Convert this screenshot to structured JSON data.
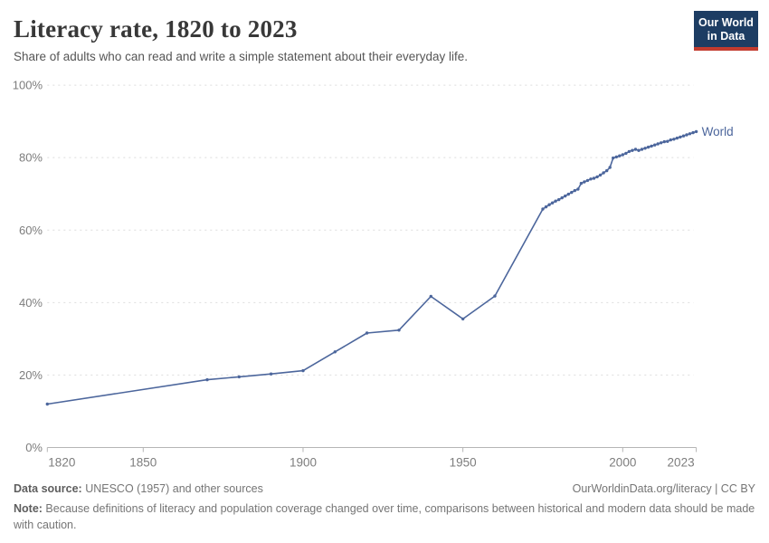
{
  "header": {
    "title": "Literacy rate, 1820 to 2023",
    "subtitle": "Share of adults who can read and write a simple statement about their everyday life.",
    "logo": {
      "line1": "Our World",
      "line2": "in Data"
    }
  },
  "chart_data": {
    "type": "line",
    "title": "Literacy rate, 1820 to 2023",
    "xlabel": "",
    "ylabel": "",
    "x_range": [
      1820,
      2023
    ],
    "y_range": [
      0,
      100
    ],
    "x_ticks": [
      1820,
      1850,
      1900,
      1950,
      2000,
      2023
    ],
    "y_ticks": [
      0,
      20,
      40,
      60,
      80,
      100
    ],
    "y_tick_suffix": "%",
    "grid": "horizontal-dashed",
    "legend": "end-of-line-label",
    "series": [
      {
        "name": "World",
        "color": "#4c669c",
        "points": [
          [
            1820,
            12.0
          ],
          [
            1870,
            18.7
          ],
          [
            1880,
            19.5
          ],
          [
            1890,
            20.3
          ],
          [
            1900,
            21.2
          ],
          [
            1910,
            26.4
          ],
          [
            1920,
            31.6
          ],
          [
            1930,
            32.4
          ],
          [
            1940,
            41.7
          ],
          [
            1950,
            35.5
          ],
          [
            1960,
            41.8
          ],
          [
            1975,
            65.8
          ],
          [
            1976,
            66.4
          ],
          [
            1977,
            67.0
          ],
          [
            1978,
            67.5
          ],
          [
            1979,
            68.0
          ],
          [
            1980,
            68.4
          ],
          [
            1981,
            68.9
          ],
          [
            1982,
            69.4
          ],
          [
            1983,
            69.9
          ],
          [
            1984,
            70.4
          ],
          [
            1985,
            70.9
          ],
          [
            1986,
            71.3
          ],
          [
            1987,
            72.9
          ],
          [
            1988,
            73.3
          ],
          [
            1989,
            73.7
          ],
          [
            1990,
            74.1
          ],
          [
            1991,
            74.3
          ],
          [
            1992,
            74.7
          ],
          [
            1993,
            75.2
          ],
          [
            1994,
            75.8
          ],
          [
            1995,
            76.4
          ],
          [
            1996,
            77.3
          ],
          [
            1997,
            79.9
          ],
          [
            1998,
            80.2
          ],
          [
            1999,
            80.5
          ],
          [
            2000,
            80.8
          ],
          [
            2001,
            81.2
          ],
          [
            2002,
            81.7
          ],
          [
            2003,
            82.0
          ],
          [
            2004,
            82.3
          ],
          [
            2005,
            82.0
          ],
          [
            2006,
            82.3
          ],
          [
            2007,
            82.6
          ],
          [
            2008,
            82.9
          ],
          [
            2009,
            83.2
          ],
          [
            2010,
            83.5
          ],
          [
            2011,
            83.8
          ],
          [
            2012,
            84.1
          ],
          [
            2013,
            84.4
          ],
          [
            2014,
            84.5
          ],
          [
            2015,
            84.9
          ],
          [
            2016,
            85.1
          ],
          [
            2017,
            85.4
          ],
          [
            2018,
            85.7
          ],
          [
            2019,
            86.0
          ],
          [
            2020,
            86.3
          ],
          [
            2021,
            86.6
          ],
          [
            2022,
            86.9
          ],
          [
            2023,
            87.2
          ]
        ]
      }
    ]
  },
  "footer": {
    "source_label": "Data source:",
    "source_text": " UNESCO (1957) and other sources",
    "link_text": "OurWorldinData.org/literacy | CC BY",
    "note_label": "Note:",
    "note_text": " Because definitions of literacy and population coverage changed over time, comparisons between historical and modern data should be made with caution."
  },
  "colors": {
    "line": "#4c669c",
    "grid": "#dddddd",
    "axis": "#b5b5b5",
    "tick_label": "#7d7d7d",
    "logo_bg": "#1d3d63",
    "logo_bar": "#c23b2e"
  }
}
